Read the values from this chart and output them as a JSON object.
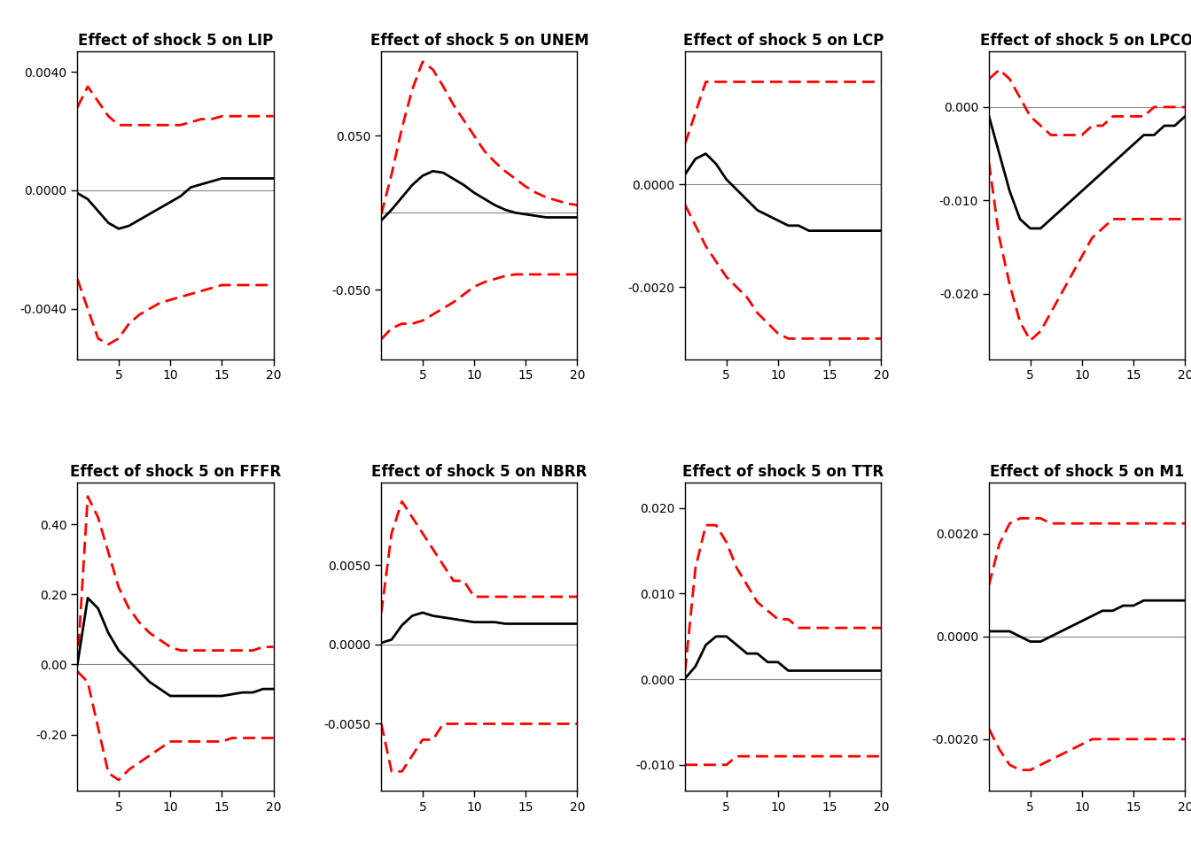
{
  "titles": [
    "Effect of shock 5 on LIP",
    "Effect of shock 5 on UNEM",
    "Effect of shock 5 on LCP",
    "Effect of shock 5 on LPCO",
    "Effect of shock 5 on FFFR",
    "Effect of shock 5 on NBRR",
    "Effect of shock 5 on TTR",
    "Effect of shock 5 on M1"
  ],
  "x": [
    1,
    2,
    3,
    4,
    5,
    6,
    7,
    8,
    9,
    10,
    11,
    12,
    13,
    14,
    15,
    16,
    17,
    18,
    19,
    20
  ],
  "median": {
    "LIP": [
      -0.0001,
      -0.0003,
      -0.0007,
      -0.0011,
      -0.0013,
      -0.0012,
      -0.001,
      -0.0008,
      -0.0006,
      -0.0004,
      -0.0002,
      0.0001,
      0.0002,
      0.0003,
      0.0004,
      0.0004,
      0.0004,
      0.0004,
      0.0004,
      0.0004
    ],
    "UNEM": [
      -0.005,
      0.002,
      0.01,
      0.018,
      0.024,
      0.027,
      0.026,
      0.022,
      0.018,
      0.013,
      0.009,
      0.005,
      0.002,
      0.0,
      -0.001,
      -0.002,
      -0.003,
      -0.003,
      -0.003,
      -0.003
    ],
    "LCP": [
      0.0002,
      0.0005,
      0.0006,
      0.0004,
      0.0001,
      -0.0001,
      -0.0003,
      -0.0005,
      -0.0006,
      -0.0007,
      -0.0008,
      -0.0008,
      -0.0009,
      -0.0009,
      -0.0009,
      -0.0009,
      -0.0009,
      -0.0009,
      -0.0009,
      -0.0009
    ],
    "LPCO": [
      -0.001,
      -0.005,
      -0.009,
      -0.012,
      -0.013,
      -0.013,
      -0.012,
      -0.011,
      -0.01,
      -0.009,
      -0.008,
      -0.007,
      -0.006,
      -0.005,
      -0.004,
      -0.003,
      -0.003,
      -0.002,
      -0.002,
      -0.001
    ],
    "FFFR": [
      0.0,
      0.19,
      0.16,
      0.09,
      0.04,
      0.01,
      -0.02,
      -0.05,
      -0.07,
      -0.09,
      -0.09,
      -0.09,
      -0.09,
      -0.09,
      -0.09,
      -0.085,
      -0.08,
      -0.08,
      -0.07,
      -0.07
    ],
    "NBRR": [
      0.0001,
      0.0003,
      0.0012,
      0.0018,
      0.002,
      0.0018,
      0.0017,
      0.0016,
      0.0015,
      0.0014,
      0.0014,
      0.0014,
      0.0013,
      0.0013,
      0.0013,
      0.0013,
      0.0013,
      0.0013,
      0.0013,
      0.0013
    ],
    "TTR": [
      0.0001,
      0.0015,
      0.004,
      0.005,
      0.005,
      0.004,
      0.003,
      0.003,
      0.002,
      0.002,
      0.001,
      0.001,
      0.001,
      0.001,
      0.001,
      0.001,
      0.001,
      0.001,
      0.001,
      0.001
    ],
    "M1": [
      0.0001,
      0.0001,
      0.0001,
      0.0,
      -0.0001,
      -0.0001,
      0.0,
      0.0001,
      0.0002,
      0.0003,
      0.0004,
      0.0005,
      0.0005,
      0.0006,
      0.0006,
      0.0007,
      0.0007,
      0.0007,
      0.0007,
      0.0007
    ]
  },
  "upper": {
    "LIP": [
      0.0028,
      0.0035,
      0.003,
      0.0025,
      0.0022,
      0.0022,
      0.0022,
      0.0022,
      0.0022,
      0.0022,
      0.0022,
      0.0023,
      0.0024,
      0.0024,
      0.0025,
      0.0025,
      0.0025,
      0.0025,
      0.0025,
      0.0025
    ],
    "UNEM": [
      -0.001,
      0.025,
      0.055,
      0.08,
      0.098,
      0.093,
      0.082,
      0.07,
      0.06,
      0.05,
      0.04,
      0.033,
      0.027,
      0.022,
      0.017,
      0.013,
      0.01,
      0.008,
      0.006,
      0.005
    ],
    "LCP": [
      0.0008,
      0.0014,
      0.002,
      0.002,
      0.002,
      0.002,
      0.002,
      0.002,
      0.002,
      0.002,
      0.002,
      0.002,
      0.002,
      0.002,
      0.002,
      0.002,
      0.002,
      0.002,
      0.002,
      0.002
    ],
    "LPCO": [
      0.003,
      0.004,
      0.003,
      0.001,
      -0.001,
      -0.002,
      -0.003,
      -0.003,
      -0.003,
      -0.003,
      -0.002,
      -0.002,
      -0.001,
      -0.001,
      -0.001,
      -0.001,
      0.0,
      0.0,
      0.0,
      0.0
    ],
    "FFFR": [
      0.0,
      0.48,
      0.42,
      0.32,
      0.22,
      0.16,
      0.12,
      0.09,
      0.07,
      0.05,
      0.04,
      0.04,
      0.04,
      0.04,
      0.04,
      0.04,
      0.04,
      0.04,
      0.05,
      0.05
    ],
    "NBRR": [
      0.002,
      0.007,
      0.009,
      0.008,
      0.007,
      0.006,
      0.005,
      0.004,
      0.004,
      0.003,
      0.003,
      0.003,
      0.003,
      0.003,
      0.003,
      0.003,
      0.003,
      0.003,
      0.003,
      0.003
    ],
    "TTR": [
      0.001,
      0.013,
      0.018,
      0.018,
      0.016,
      0.013,
      0.011,
      0.009,
      0.008,
      0.007,
      0.007,
      0.006,
      0.006,
      0.006,
      0.006,
      0.006,
      0.006,
      0.006,
      0.006,
      0.006
    ],
    "M1": [
      0.001,
      0.0018,
      0.0022,
      0.0023,
      0.0023,
      0.0023,
      0.0022,
      0.0022,
      0.0022,
      0.0022,
      0.0022,
      0.0022,
      0.0022,
      0.0022,
      0.0022,
      0.0022,
      0.0022,
      0.0022,
      0.0022,
      0.0022
    ]
  },
  "lower": {
    "LIP": [
      -0.003,
      -0.004,
      -0.005,
      -0.0052,
      -0.005,
      -0.0045,
      -0.0042,
      -0.004,
      -0.0038,
      -0.0037,
      -0.0036,
      -0.0035,
      -0.0034,
      -0.0033,
      -0.0032,
      -0.0032,
      -0.0032,
      -0.0032,
      -0.0032,
      -0.0032
    ],
    "UNEM": [
      -0.082,
      -0.075,
      -0.072,
      -0.072,
      -0.07,
      -0.066,
      -0.062,
      -0.058,
      -0.053,
      -0.048,
      -0.045,
      -0.043,
      -0.041,
      -0.04,
      -0.04,
      -0.04,
      -0.04,
      -0.04,
      -0.04,
      -0.04
    ],
    "LCP": [
      -0.0004,
      -0.0008,
      -0.0012,
      -0.0015,
      -0.0018,
      -0.002,
      -0.0022,
      -0.0025,
      -0.0027,
      -0.0029,
      -0.003,
      -0.003,
      -0.003,
      -0.003,
      -0.003,
      -0.003,
      -0.003,
      -0.003,
      -0.003,
      -0.003
    ],
    "LPCO": [
      -0.006,
      -0.014,
      -0.019,
      -0.023,
      -0.025,
      -0.024,
      -0.022,
      -0.02,
      -0.018,
      -0.016,
      -0.014,
      -0.013,
      -0.012,
      -0.012,
      -0.012,
      -0.012,
      -0.012,
      -0.012,
      -0.012,
      -0.012
    ],
    "FFFR": [
      -0.02,
      -0.05,
      -0.18,
      -0.31,
      -0.33,
      -0.3,
      -0.28,
      -0.26,
      -0.24,
      -0.22,
      -0.22,
      -0.22,
      -0.22,
      -0.22,
      -0.22,
      -0.21,
      -0.21,
      -0.21,
      -0.21,
      -0.21
    ],
    "NBRR": [
      -0.005,
      -0.008,
      -0.008,
      -0.007,
      -0.006,
      -0.006,
      -0.005,
      -0.005,
      -0.005,
      -0.005,
      -0.005,
      -0.005,
      -0.005,
      -0.005,
      -0.005,
      -0.005,
      -0.005,
      -0.005,
      -0.005,
      -0.005
    ],
    "TTR": [
      -0.01,
      -0.01,
      -0.01,
      -0.01,
      -0.01,
      -0.009,
      -0.009,
      -0.009,
      -0.009,
      -0.009,
      -0.009,
      -0.009,
      -0.009,
      -0.009,
      -0.009,
      -0.009,
      -0.009,
      -0.009,
      -0.009,
      -0.009
    ],
    "M1": [
      -0.0018,
      -0.0022,
      -0.0025,
      -0.0026,
      -0.0026,
      -0.0025,
      -0.0024,
      -0.0023,
      -0.0022,
      -0.0021,
      -0.002,
      -0.002,
      -0.002,
      -0.002,
      -0.002,
      -0.002,
      -0.002,
      -0.002,
      -0.002,
      -0.002
    ]
  },
  "yticks": {
    "LIP": [
      -0.004,
      0.0,
      0.004
    ],
    "UNEM": [
      -0.05,
      0.05
    ],
    "LCP": [
      -0.002,
      0.0
    ],
    "LPCO": [
      -0.02,
      -0.01,
      0.0
    ],
    "FFFR": [
      -0.2,
      0.0,
      0.2,
      0.4
    ],
    "NBRR": [
      -0.005,
      0.0,
      0.005
    ],
    "TTR": [
      -0.01,
      0.0,
      0.01,
      0.02
    ],
    "M1": [
      -0.002,
      0.0,
      0.002
    ]
  },
  "ylims": {
    "LIP": [
      -0.0057,
      0.0047
    ],
    "UNEM": [
      -0.095,
      0.105
    ],
    "LCP": [
      -0.0034,
      0.0026
    ],
    "LPCO": [
      -0.027,
      0.006
    ],
    "FFFR": [
      -0.36,
      0.52
    ],
    "NBRR": [
      -0.0092,
      0.0102
    ],
    "TTR": [
      -0.013,
      0.023
    ],
    "M1": [
      -0.003,
      0.003
    ]
  },
  "keys": [
    "LIP",
    "UNEM",
    "LCP",
    "LPCO",
    "FFFR",
    "NBRR",
    "TTR",
    "M1"
  ],
  "line_color": "#000000",
  "band_color": "#ff0000",
  "zero_line_color": "#888888",
  "background_color": "#ffffff"
}
